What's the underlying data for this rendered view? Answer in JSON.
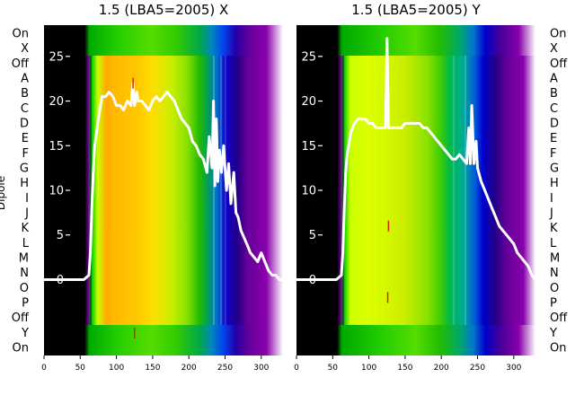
{
  "chart_data": [
    {
      "type": "heatmap",
      "title": "1.5 (LBA5=2005) X",
      "ylabel": "Dipole",
      "y_categories": [
        "On",
        "X",
        "Off",
        "A",
        "B",
        "C",
        "D",
        "E",
        "F",
        "G",
        "H",
        "I",
        "J",
        "K",
        "L",
        "M",
        "N",
        "O",
        "P",
        "Off",
        "Y",
        "On"
      ],
      "x_ticks": [
        0,
        50,
        100,
        150,
        200,
        250,
        300
      ],
      "xlim": [
        0,
        330
      ],
      "overlay_y_ticks": [
        0,
        5,
        10,
        15,
        20,
        25
      ],
      "overlay_ylim": [
        -8.5,
        28.5
      ],
      "overlay_series": {
        "x": [
          0,
          55,
          62,
          64,
          66,
          68,
          70,
          75,
          78,
          80,
          85,
          90,
          95,
          100,
          105,
          110,
          115,
          120,
          123,
          125,
          128,
          130,
          135,
          140,
          145,
          150,
          155,
          160,
          165,
          170,
          175,
          180,
          185,
          190,
          195,
          200,
          205,
          210,
          215,
          220,
          225,
          228,
          232,
          234,
          236,
          238,
          240,
          242,
          245,
          248,
          250,
          252,
          255,
          258,
          262,
          265,
          268,
          272,
          280,
          285,
          290,
          295,
          300,
          305,
          310,
          315,
          320,
          325,
          330
        ],
        "y": [
          0,
          0,
          0.5,
          3,
          8,
          12,
          15,
          18,
          19.5,
          20.5,
          20.5,
          21,
          20.5,
          19.5,
          19.5,
          19,
          20,
          19.5,
          22,
          19.5,
          21,
          20,
          20,
          19.5,
          19,
          20,
          20.5,
          20,
          20.5,
          21,
          20.5,
          20,
          19,
          18,
          17.5,
          17,
          15.5,
          15,
          14,
          13.5,
          12,
          16,
          12.5,
          20,
          10.5,
          18,
          11,
          14.5,
          12,
          15,
          12.5,
          10,
          13,
          8.5,
          12,
          7.5,
          7,
          5.5,
          4,
          3,
          2.5,
          2,
          3,
          2,
          1,
          0.5,
          0.5,
          0,
          0
        ]
      },
      "markers": [
        {
          "x": 123,
          "y": 22
        },
        {
          "x": 125,
          "y": -6
        }
      ]
    },
    {
      "type": "heatmap",
      "title": "1.5 (LBA5=2005) Y",
      "y_categories": [
        "On",
        "X",
        "Off",
        "A",
        "B",
        "C",
        "D",
        "E",
        "F",
        "G",
        "H",
        "I",
        "J",
        "K",
        "L",
        "M",
        "N",
        "O",
        "P",
        "Off",
        "Y",
        "On"
      ],
      "x_ticks": [
        0,
        50,
        100,
        150,
        200,
        250,
        300
      ],
      "xlim": [
        0,
        330
      ],
      "overlay_y_ticks": [
        0,
        5,
        10,
        15,
        20,
        25
      ],
      "overlay_ylim": [
        -8.5,
        28.5
      ],
      "overlay_series": {
        "x": [
          0,
          55,
          62,
          64,
          66,
          68,
          70,
          75,
          80,
          85,
          90,
          95,
          100,
          105,
          110,
          115,
          120,
          123,
          125,
          127,
          128,
          130,
          135,
          140,
          145,
          150,
          155,
          160,
          165,
          170,
          175,
          180,
          185,
          190,
          195,
          200,
          205,
          210,
          215,
          220,
          225,
          230,
          235,
          238,
          240,
          242,
          245,
          248,
          250,
          255,
          260,
          265,
          270,
          275,
          280,
          285,
          290,
          295,
          300,
          305,
          310,
          315,
          320,
          325,
          330
        ],
        "y": [
          0,
          0,
          0.5,
          3,
          8,
          12,
          14,
          16.5,
          17.5,
          18,
          18,
          18,
          17.5,
          17.5,
          17,
          17,
          17,
          17,
          27,
          17,
          17,
          17,
          17,
          17,
          17,
          17.5,
          17.5,
          17.5,
          17.5,
          17.5,
          17,
          17,
          16.5,
          16,
          15.5,
          15,
          14.5,
          14,
          13.5,
          13.5,
          14,
          13.5,
          13,
          17,
          13,
          19.5,
          13,
          15.5,
          12.5,
          11,
          10,
          9,
          8,
          7,
          6,
          5.5,
          5,
          4.5,
          4,
          3,
          2.5,
          2,
          1.5,
          0.5,
          0
        ]
      },
      "markers": [
        {
          "x": 127,
          "y": 6
        },
        {
          "x": 126,
          "y": -2
        }
      ]
    }
  ],
  "colors": {
    "curve": "#ffffff",
    "marker": "#dd2200",
    "background": "#ffffff",
    "text": "#000000"
  }
}
